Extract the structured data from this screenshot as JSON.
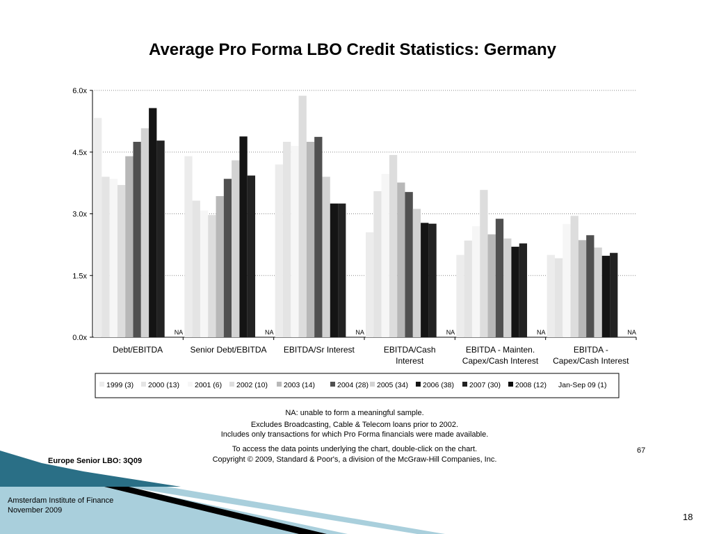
{
  "title": "Average Pro Forma LBO Credit Statistics: Germany",
  "chart_data": {
    "type": "bar",
    "ylim": [
      0,
      6
    ],
    "yticks": [
      "0.0x",
      "1.5x",
      "3.0x",
      "4.5x",
      "6.0x"
    ],
    "ytick_values": [
      0,
      1.5,
      3.0,
      4.5,
      6.0
    ],
    "grid": "dotted horizontal",
    "legend_position": "bottom",
    "categories": [
      [
        "Debt/EBITDA"
      ],
      [
        "Senior Debt/EBITDA"
      ],
      [
        "EBITDA/Sr Interest"
      ],
      [
        "EBITDA/Cash",
        "Interest"
      ],
      [
        "EBITDA - Mainten.",
        "Capex/Cash Interest"
      ],
      [
        "EBITDA -",
        "Capex/Cash Interest"
      ]
    ],
    "series": [
      {
        "name": "1999 (3)",
        "color": "#ececec",
        "values": [
          5.33,
          4.4,
          4.2,
          2.55,
          2.0,
          2.0
        ]
      },
      {
        "name": "2000 (13)",
        "color": "#e4e4e4",
        "values": [
          3.9,
          3.32,
          4.75,
          3.55,
          2.35,
          1.92
        ]
      },
      {
        "name": "2001 (6)",
        "color": "#f6f6f6",
        "values": [
          3.85,
          3.08,
          4.65,
          3.97,
          2.7,
          2.75
        ]
      },
      {
        "name": "2002 (10)",
        "color": "#dddddd",
        "values": [
          3.7,
          2.97,
          5.87,
          4.43,
          3.58,
          2.95
        ]
      },
      {
        "name": "2003 (14)",
        "color": "#b8b8b8",
        "values": [
          4.4,
          3.43,
          4.75,
          3.76,
          2.5,
          2.36
        ]
      },
      {
        "name": "2004 (28)",
        "color": "#505050",
        "values": [
          4.75,
          3.85,
          4.87,
          3.53,
          2.88,
          2.48
        ]
      },
      {
        "name": "2005 (34)",
        "color": "#d2d2d2",
        "values": [
          5.08,
          4.3,
          3.9,
          3.12,
          2.4,
          2.18
        ]
      },
      {
        "name": "2006 (38)",
        "color": "#141414",
        "values": [
          5.57,
          4.88,
          3.25,
          2.78,
          2.2,
          1.98
        ]
      },
      {
        "name": "2007 (30)",
        "color": "#222222",
        "values": [
          4.78,
          3.93,
          3.25,
          2.76,
          2.28,
          2.05
        ]
      },
      {
        "name": "2008 (12)",
        "color": "#0c0c0c",
        "values": [
          null,
          null,
          null,
          null,
          null,
          null
        ]
      },
      {
        "name": "Jan-Sep 09 (1)",
        "color": "#ffffff",
        "values": [
          null,
          null,
          null,
          null,
          null,
          null
        ]
      }
    ],
    "na_label": "NA"
  },
  "notes": {
    "na": "NA: unable to form a meaningful sample.",
    "excludes": "Excludes Broadcasting, Cable & Telecom loans prior to 2002.",
    "includes": "Includes only transactions for which Pro Forma financials were made available.",
    "access": "To access the data points underlying the chart, double-click on the chart.",
    "copyright": "Copyright © 2009, Standard & Poor's, a division of the McGraw-Hill Companies, Inc."
  },
  "footer": {
    "source": "Europe Senior LBO: 3Q09",
    "page": "67",
    "institute": "Amsterdam Institute of Finance",
    "date": "November 2009",
    "slide_number": "18"
  },
  "decor_colors": {
    "teal_dark": "#2a6f86",
    "teal_light": "#a9cfdc",
    "black": "#000000"
  }
}
